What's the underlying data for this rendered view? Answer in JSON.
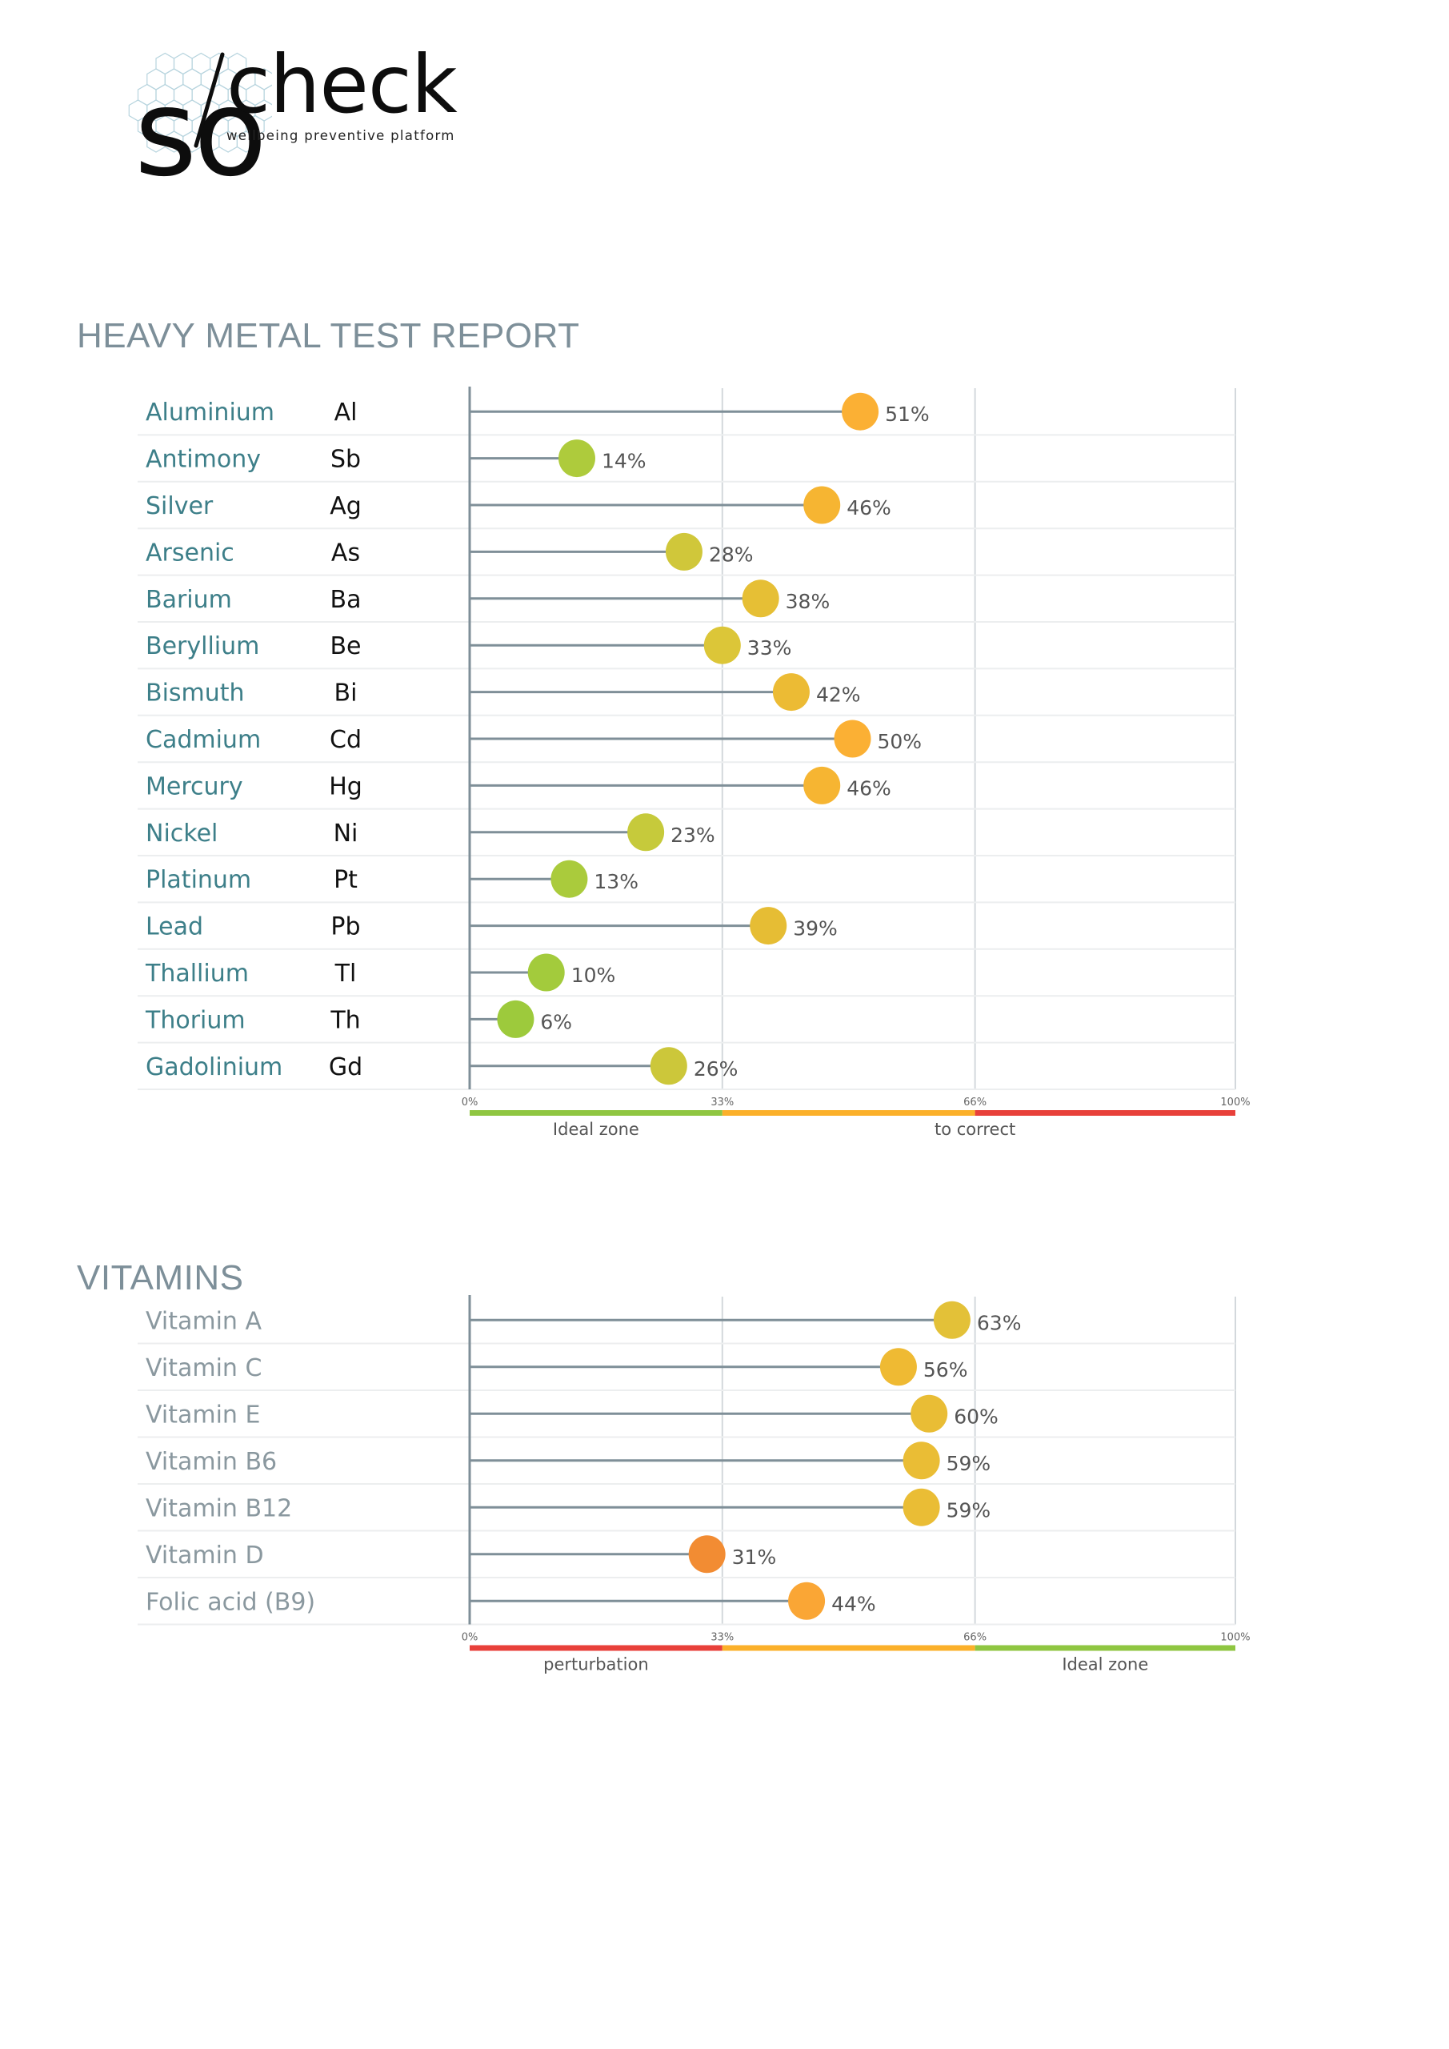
{
  "logo": {
    "brand_left": "so",
    "brand_right": "check",
    "tagline": "wellbeing preventive platform"
  },
  "chart_data": [
    {
      "type": "lollipop",
      "title": "HEAVY METAL TEST REPORT",
      "xlim": [
        0,
        100
      ],
      "ticks": [
        "0%",
        "33%",
        "66%",
        "100%"
      ],
      "tick_values": [
        0,
        33,
        66,
        100
      ],
      "grid": true,
      "zones": [
        {
          "from": 0,
          "to": 33,
          "color": "#8fc641"
        },
        {
          "from": 33,
          "to": 66,
          "color": "#fbb02a"
        },
        {
          "from": 66,
          "to": 100,
          "color": "#e8403a"
        }
      ],
      "zone_labels": [
        {
          "text": "Ideal zone",
          "at": 16.5
        },
        {
          "text": "to correct",
          "at": 66
        }
      ],
      "items": [
        {
          "name": "Aluminium",
          "symbol": "Al",
          "value": 51,
          "label": "51%",
          "color": "#fbb034"
        },
        {
          "name": "Antimony",
          "symbol": "Sb",
          "value": 14,
          "label": "14%",
          "color": "#aecb3c"
        },
        {
          "name": "Silver",
          "symbol": "Ag",
          "value": 46,
          "label": "46%",
          "color": "#f6b532"
        },
        {
          "name": "Arsenic",
          "symbol": "As",
          "value": 28,
          "label": "28%",
          "color": "#d0c73a"
        },
        {
          "name": "Barium",
          "symbol": "Ba",
          "value": 38,
          "label": "38%",
          "color": "#e6bf35"
        },
        {
          "name": "Beryllium",
          "symbol": "Be",
          "value": 33,
          "label": "33%",
          "color": "#dcc638"
        },
        {
          "name": "Bismuth",
          "symbol": "Bi",
          "value": 42,
          "label": "42%",
          "color": "#ecbb34"
        },
        {
          "name": "Cadmium",
          "symbol": "Cd",
          "value": 50,
          "label": "50%",
          "color": "#fbb034"
        },
        {
          "name": "Mercury",
          "symbol": "Hg",
          "value": 46,
          "label": "46%",
          "color": "#f6b532"
        },
        {
          "name": "Nickel",
          "symbol": "Ni",
          "value": 23,
          "label": "23%",
          "color": "#c6ca3b"
        },
        {
          "name": "Platinum",
          "symbol": "Pt",
          "value": 13,
          "label": "13%",
          "color": "#aacb3c"
        },
        {
          "name": "Lead",
          "symbol": "Pb",
          "value": 39,
          "label": "39%",
          "color": "#e6bd34"
        },
        {
          "name": "Thallium",
          "symbol": "Tl",
          "value": 10,
          "label": "10%",
          "color": "#a3cb3c"
        },
        {
          "name": "Thorium",
          "symbol": "Th",
          "value": 6,
          "label": "6%",
          "color": "#9dca3c"
        },
        {
          "name": "Gadolinium",
          "symbol": "Gd",
          "value": 26,
          "label": "26%",
          "color": "#ccc73a"
        }
      ]
    },
    {
      "type": "lollipop",
      "title": "VITAMINS",
      "xlim": [
        0,
        100
      ],
      "ticks": [
        "0%",
        "33%",
        "66%",
        "100%"
      ],
      "tick_values": [
        0,
        33,
        66,
        100
      ],
      "grid": true,
      "zones": [
        {
          "from": 0,
          "to": 33,
          "color": "#e8403a"
        },
        {
          "from": 33,
          "to": 66,
          "color": "#fbb02a"
        },
        {
          "from": 66,
          "to": 100,
          "color": "#8fc641"
        }
      ],
      "zone_labels": [
        {
          "text": "perturbation",
          "at": 16.5
        },
        {
          "text": "Ideal zone",
          "at": 83
        }
      ],
      "items": [
        {
          "name": "Vitamin A",
          "value": 63,
          "label": "63%",
          "color": "#e3c138"
        },
        {
          "name": "Vitamin C",
          "value": 56,
          "label": "56%",
          "color": "#efba33"
        },
        {
          "name": "Vitamin E",
          "value": 60,
          "label": "60%",
          "color": "#e9bd35"
        },
        {
          "name": "Vitamin B6",
          "value": 59,
          "label": "59%",
          "color": "#eabd35"
        },
        {
          "name": "Vitamin B12",
          "value": 59,
          "label": "59%",
          "color": "#eabd35"
        },
        {
          "name": "Vitamin D",
          "value": 31,
          "label": "31%",
          "color": "#f28c33"
        },
        {
          "name": "Folic acid (B9)",
          "value": 44,
          "label": "44%",
          "color": "#faa635"
        }
      ]
    }
  ]
}
